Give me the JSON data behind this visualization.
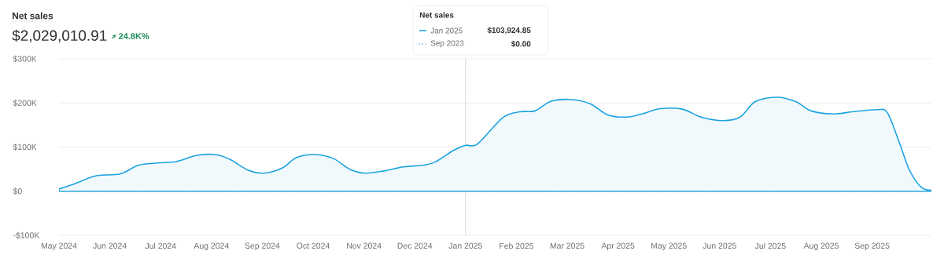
{
  "chart_data": {
    "type": "area",
    "title": "Net sales",
    "subtitle": "$2,029,010.91",
    "annotations": [
      "24.8K%",
      "$103,924.85",
      "$0.00"
    ],
    "legend_title": "Net sales",
    "legend": "top",
    "grid": "y",
    "xlim": [
      "2024-05-01",
      "2025-10-06"
    ],
    "xticks": [
      {
        "value": "2024-05",
        "label": "May 2024"
      },
      {
        "value": "2024-06",
        "label": "Jun 2024"
      },
      {
        "value": "2024-07",
        "label": "Jul 2024"
      },
      {
        "value": "2024-08",
        "label": "Aug 2024"
      },
      {
        "value": "2024-09",
        "label": "Sep 2024"
      },
      {
        "value": "2024-10",
        "label": "Oct 2024"
      },
      {
        "value": "2024-11",
        "label": "Nov 2024"
      },
      {
        "value": "2024-12",
        "label": "Dec 2024"
      },
      {
        "value": "2025-01",
        "label": "Jan 2025"
      },
      {
        "value": "2025-02",
        "label": "Feb 2025"
      },
      {
        "value": "2025-03",
        "label": "Mar 2025"
      },
      {
        "value": "2025-04",
        "label": "Apr 2025"
      },
      {
        "value": "2025-05",
        "label": "May 2025"
      },
      {
        "value": "2025-06",
        "label": "Jun 2025"
      },
      {
        "value": "2025-07",
        "label": "Jul 2025"
      },
      {
        "value": "2025-08",
        "label": "Aug 2025"
      },
      {
        "value": "2025-09",
        "label": "Sep 2025"
      }
    ],
    "ylim": [
      -100000,
      300000
    ],
    "yticks": [
      {
        "value": -100000,
        "label": "-$100K"
      },
      {
        "value": 0,
        "label": "$0"
      },
      {
        "value": 100000,
        "label": "$100K"
      },
      {
        "value": 200000,
        "label": "$200K"
      },
      {
        "value": 300000,
        "label": "$300K"
      }
    ],
    "ref_lines": [
      {
        "axis": "x",
        "value": "2025-01-01",
        "color": "#c9c9cd"
      }
    ],
    "series": [
      {
        "name": "Jan 2025",
        "color": "#1ba3e0",
        "x": [
          "2024-05-01",
          "2024-05-09",
          "2024-05-23",
          "2024-06-07",
          "2024-06-18",
          "2024-06-29",
          "2024-07-10",
          "2024-07-22",
          "2024-08-03",
          "2024-08-12",
          "2024-08-23",
          "2024-09-02",
          "2024-09-13",
          "2024-09-21",
          "2024-10-02",
          "2024-10-13",
          "2024-10-23",
          "2024-11-02",
          "2024-11-13",
          "2024-11-24",
          "2024-12-06",
          "2024-12-13",
          "2024-12-24",
          "2025-01-01",
          "2025-01-08",
          "2025-01-23",
          "2025-02-03",
          "2025-02-12",
          "2025-02-21",
          "2025-03-02",
          "2025-03-14",
          "2025-03-25",
          "2025-04-06",
          "2025-04-15",
          "2025-04-26",
          "2025-05-09",
          "2025-05-20",
          "2025-06-03",
          "2025-06-13",
          "2025-06-22",
          "2025-07-05",
          "2025-07-16",
          "2025-07-25",
          "2025-08-08",
          "2025-08-19",
          "2025-09-04",
          "2025-09-10",
          "2025-09-17",
          "2025-09-23",
          "2025-09-30",
          "2025-10-06"
        ],
        "values": [
          5000,
          15000,
          35000,
          39000,
          59000,
          64000,
          67000,
          81000,
          83000,
          72000,
          47000,
          41000,
          53000,
          76000,
          83000,
          74000,
          49000,
          41000,
          46000,
          55000,
          59000,
          66000,
          93000,
          103924.85,
          107000,
          167000,
          180000,
          182000,
          203000,
          208000,
          199000,
          173000,
          168000,
          175000,
          187000,
          186000,
          168000,
          160000,
          168000,
          203000,
          213000,
          203000,
          182000,
          175000,
          180000,
          185000,
          178000,
          111000,
          48000,
          9000,
          2000
        ]
      },
      {
        "name": "Sep 2023",
        "type": "line",
        "line_style": "dotted",
        "color": "#4fb3de",
        "x": [
          "2024-05-01",
          "2025-01-01",
          "2025-10-06"
        ],
        "values": [
          0,
          0,
          0
        ]
      }
    ]
  }
}
